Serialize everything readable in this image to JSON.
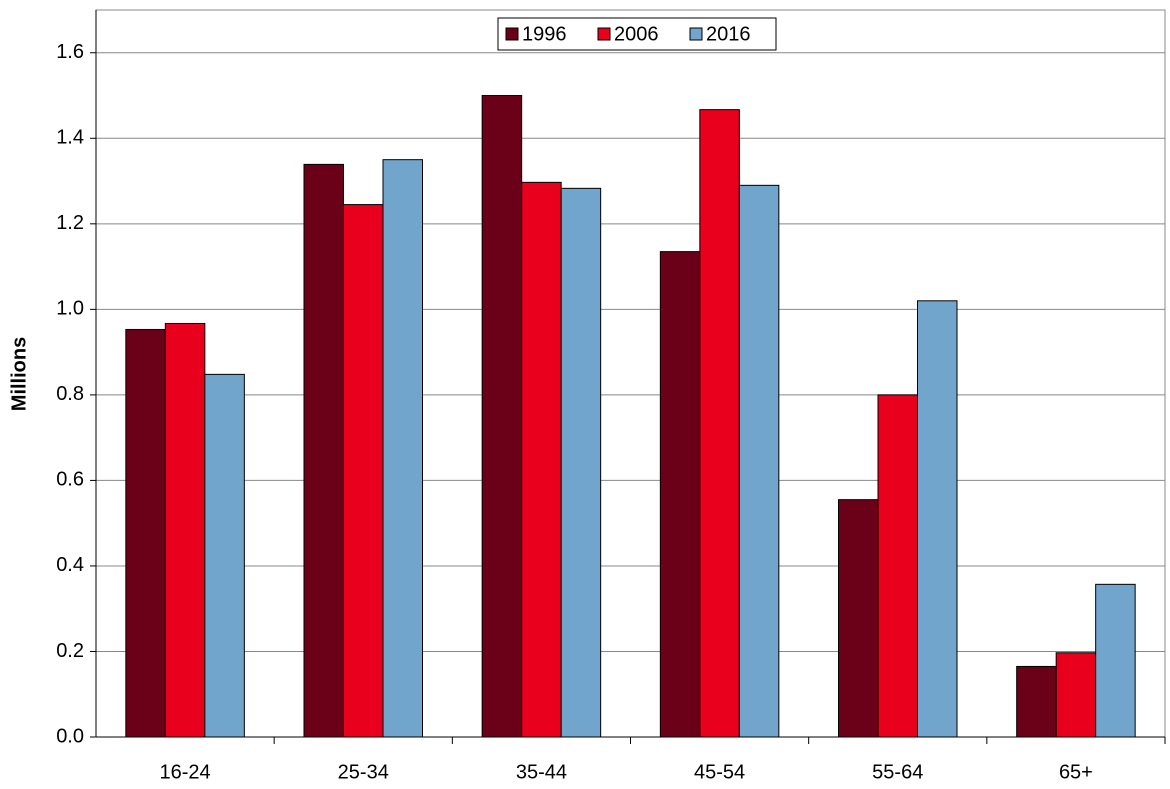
{
  "chart_data": {
    "type": "bar",
    "y_label": "Millions",
    "categories": [
      "16-24",
      "25-34",
      "35-44",
      "45-54",
      "55-64",
      "65+"
    ],
    "series": [
      {
        "name": "1996",
        "color": "#6b0019",
        "values": [
          0.953,
          1.339,
          1.5,
          1.135,
          0.555,
          0.165
        ]
      },
      {
        "name": "2006",
        "color": "#e8001c",
        "values": [
          0.967,
          1.245,
          1.297,
          1.467,
          0.8,
          0.197
        ]
      },
      {
        "name": "2016",
        "color": "#72a5cc",
        "values": [
          0.848,
          1.35,
          1.283,
          1.29,
          1.02,
          0.357
        ]
      }
    ],
    "ylim": [
      0,
      1.7
    ],
    "yticks": [
      {
        "value": 0,
        "label": "0.0"
      },
      0.2,
      0.4,
      0.6,
      0.8,
      {
        "value": 1,
        "label": "1.0"
      },
      1.2,
      1.4,
      1.6
    ],
    "grid": true,
    "legend": "top"
  }
}
